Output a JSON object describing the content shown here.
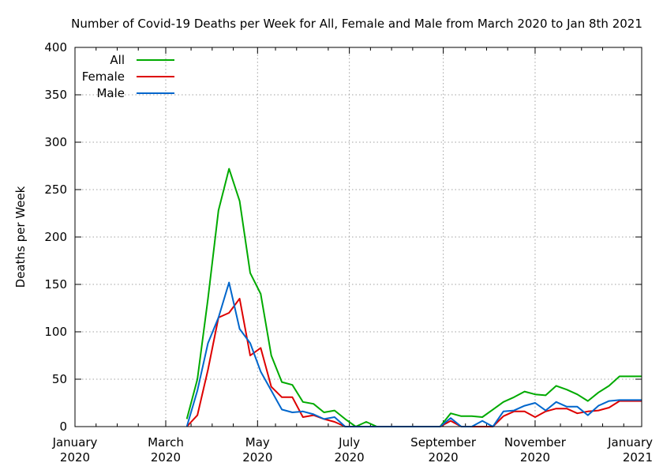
{
  "chart_data": {
    "type": "line",
    "title": "Number of Covid-19 Deaths per Week for All, Female and Male from March 2020 to Jan 8th 2021",
    "xlabel": "",
    "ylabel": "Deaths per Week",
    "ylim": [
      0,
      400
    ],
    "yticks": [
      0,
      50,
      100,
      150,
      200,
      250,
      300,
      350,
      400
    ],
    "xlim_weeks": [
      0,
      53.7
    ],
    "xticks": [
      {
        "week": 0,
        "line1": "January",
        "line2": "2020"
      },
      {
        "week": 8.6,
        "line1": "March",
        "line2": "2020"
      },
      {
        "week": 17.3,
        "line1": "May",
        "line2": "2020"
      },
      {
        "week": 26.0,
        "line1": "July",
        "line2": "2020"
      },
      {
        "week": 34.9,
        "line1": "September",
        "line2": "2020"
      },
      {
        "week": 43.6,
        "line1": "November",
        "line2": "2020"
      },
      {
        "week": 53.7,
        "line1": "January",
        "line2": "2021"
      }
    ],
    "minor_tick_weeks": [
      2,
      4,
      6,
      11,
      13,
      15,
      19,
      21,
      24,
      28,
      30,
      32,
      37,
      39,
      41,
      46,
      48,
      50,
      52
    ],
    "x": [
      10.6,
      11.6,
      12.6,
      13.6,
      14.6,
      15.6,
      16.6,
      17.6,
      18.6,
      19.6,
      20.6,
      21.6,
      22.6,
      23.6,
      24.6,
      25.6,
      26.6,
      27.6,
      28.6,
      29.6,
      30.6,
      31.6,
      32.6,
      33.6,
      34.6,
      35.6,
      36.6,
      37.6,
      38.6,
      39.6,
      40.6,
      41.6,
      42.6,
      43.6,
      44.6,
      45.6,
      46.6,
      47.6,
      48.6,
      49.6,
      50.6,
      51.6,
      52.6,
      53.7
    ],
    "series": [
      {
        "name": "All",
        "color": "#00aa00",
        "values": [
          8,
          50,
          135,
          228,
          272,
          238,
          162,
          140,
          75,
          47,
          44,
          26,
          24,
          15,
          17,
          8,
          0,
          5,
          0,
          0,
          0,
          0,
          0,
          0,
          0,
          14,
          11,
          11,
          10,
          18,
          26,
          31,
          37,
          34,
          33,
          43,
          39,
          34,
          27,
          36,
          43,
          53,
          53,
          53
        ]
      },
      {
        "name": "Female",
        "color": "#dd0000",
        "values": [
          0,
          12,
          60,
          115,
          120,
          135,
          75,
          83,
          42,
          31,
          31,
          10,
          12,
          8,
          5,
          0,
          0,
          0,
          0,
          0,
          0,
          0,
          0,
          0,
          0,
          6,
          0,
          0,
          0,
          0,
          11,
          16,
          16,
          10,
          16,
          19,
          19,
          14,
          16,
          17,
          20,
          27,
          27,
          27
        ]
      },
      {
        "name": "Male",
        "color": "#0066cc",
        "values": [
          0,
          38,
          88,
          115,
          152,
          103,
          88,
          58,
          38,
          18,
          15,
          16,
          13,
          8,
          10,
          0,
          0,
          0,
          0,
          0,
          0,
          0,
          0,
          0,
          0,
          9,
          0,
          0,
          6,
          0,
          16,
          17,
          22,
          25,
          17,
          26,
          21,
          21,
          12,
          22,
          27,
          28,
          28,
          28
        ]
      }
    ],
    "legend_position": "top-left",
    "grid": true
  }
}
